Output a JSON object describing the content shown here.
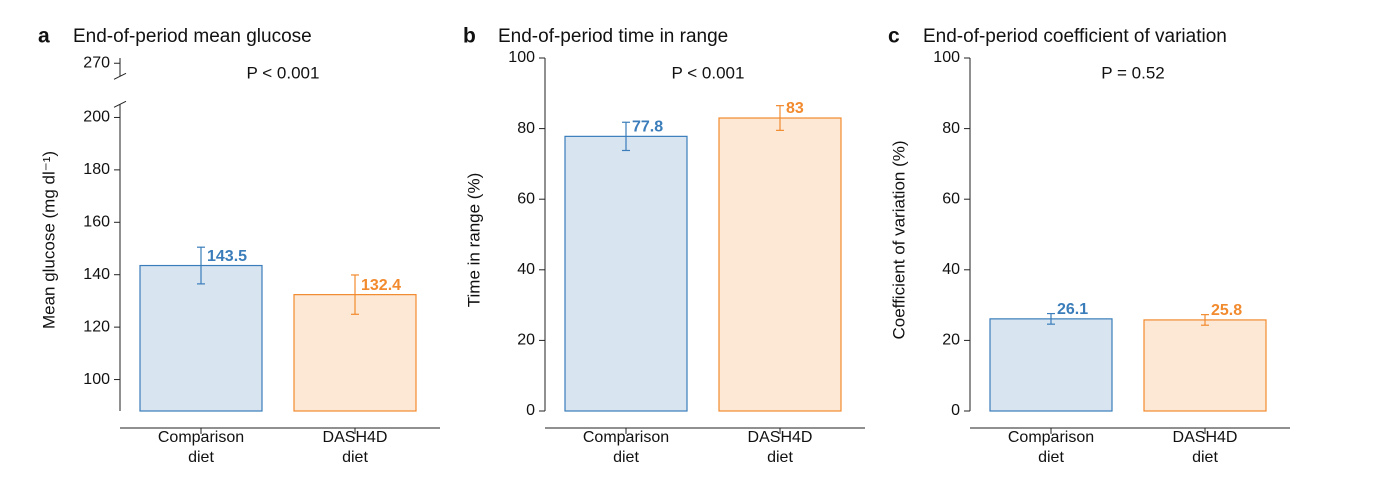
{
  "chart_data": [
    {
      "type": "bar",
      "panel": "a",
      "title": "End-of-period mean glucose",
      "ylabel": "Mean glucose (mg dl⁻¹)",
      "annotation": "P < 0.001",
      "categories": [
        "Comparison diet",
        "DASH4D diet"
      ],
      "values": [
        143.5,
        132.4
      ],
      "errors": [
        7,
        7.5
      ],
      "colors": [
        "#3a7dba",
        "#f28a2e"
      ],
      "ylim": [
        88,
        272
      ],
      "yticks": [
        100,
        120,
        140,
        160,
        180,
        200,
        270
      ],
      "axis_break": [
        205,
        265
      ]
    },
    {
      "type": "bar",
      "panel": "b",
      "title": "End-of-period time in range",
      "ylabel": "Time in range (%)",
      "annotation": "P < 0.001",
      "categories": [
        "Comparison diet",
        "DASH4D diet"
      ],
      "values": [
        77.8,
        83.0
      ],
      "errors": [
        4,
        3.5
      ],
      "colors": [
        "#3a7dba",
        "#f28a2e"
      ],
      "ylim": [
        0,
        100
      ],
      "yticks": [
        0,
        20,
        40,
        60,
        80,
        100
      ]
    },
    {
      "type": "bar",
      "panel": "c",
      "title": "End-of-period coefficient of variation",
      "ylabel": "Coefficient of variation (%)",
      "annotation": "P = 0.52",
      "categories": [
        "Comparison diet",
        "DASH4D diet"
      ],
      "values": [
        26.1,
        25.8
      ],
      "errors": [
        1.5,
        1.5
      ],
      "colors": [
        "#3a7dba",
        "#f28a2e"
      ],
      "ylim": [
        0,
        100
      ],
      "yticks": [
        0,
        20,
        40,
        60,
        80,
        100
      ]
    }
  ]
}
